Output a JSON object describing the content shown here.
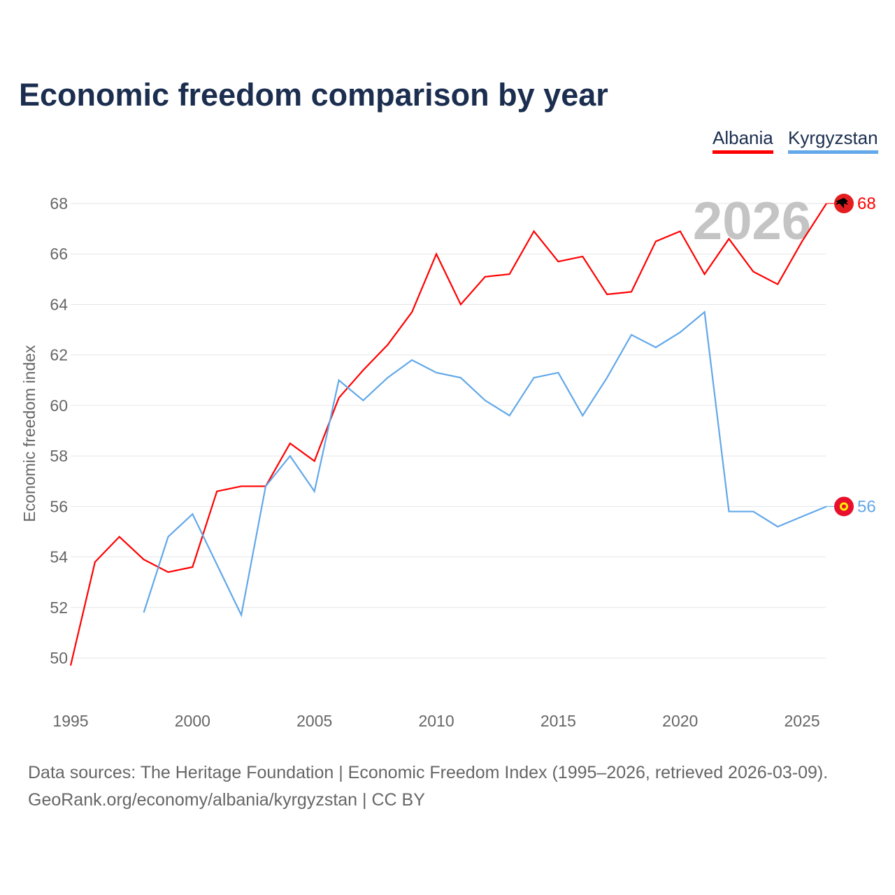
{
  "title": "Economic freedom comparison by year",
  "footer": {
    "line1": "Data sources: The Heritage Foundation | Economic Freedom Index (1995–2026, retrieved 2026-03-09).",
    "line2": "GeoRank.org/economy/albania/kyrgyzstan | CC BY"
  },
  "chart_data": {
    "type": "line",
    "title": "Economic freedom comparison by year",
    "xlabel": "",
    "ylabel": "Economic freedom index",
    "xlim": [
      1995,
      2026
    ],
    "ylim": [
      48,
      69
    ],
    "x_ticks": [
      1995,
      2000,
      2005,
      2010,
      2015,
      2020,
      2025
    ],
    "y_ticks": [
      50,
      52,
      54,
      56,
      58,
      60,
      62,
      64,
      66,
      68
    ],
    "grid": true,
    "legend_position": "top-right",
    "year_watermark": "2026",
    "series": [
      {
        "name": "Albania",
        "color": "#ff0000",
        "end_label": "68",
        "flag_icon": "albania-flag-icon",
        "x": [
          1995,
          1996,
          1997,
          1998,
          1999,
          2000,
          2001,
          2002,
          2003,
          2004,
          2005,
          2006,
          2007,
          2008,
          2009,
          2010,
          2011,
          2012,
          2013,
          2014,
          2015,
          2016,
          2017,
          2018,
          2019,
          2020,
          2021,
          2022,
          2023,
          2024,
          2025,
          2026
        ],
        "values": [
          49.7,
          53.8,
          54.8,
          53.9,
          53.4,
          53.6,
          56.6,
          56.8,
          56.8,
          58.5,
          57.8,
          60.3,
          61.4,
          62.4,
          63.7,
          66.0,
          64.0,
          65.1,
          65.2,
          66.9,
          65.7,
          65.9,
          64.4,
          64.5,
          66.5,
          66.9,
          65.2,
          66.6,
          65.3,
          64.8,
          66.5,
          68.0
        ]
      },
      {
        "name": "Kyrgyzstan",
        "color": "#62a8ea",
        "end_label": "56",
        "flag_icon": "kyrgyzstan-flag-icon",
        "x": [
          1998,
          1999,
          2000,
          2001,
          2002,
          2003,
          2004,
          2005,
          2006,
          2007,
          2008,
          2009,
          2010,
          2011,
          2012,
          2013,
          2014,
          2015,
          2016,
          2017,
          2018,
          2019,
          2020,
          2021,
          2022,
          2023,
          2024,
          2025,
          2026
        ],
        "values": [
          51.8,
          54.8,
          55.7,
          53.7,
          51.7,
          56.8,
          58.0,
          56.6,
          61.0,
          60.2,
          61.1,
          61.8,
          61.3,
          61.1,
          60.2,
          59.6,
          61.1,
          61.3,
          59.6,
          61.1,
          62.8,
          62.3,
          62.9,
          63.7,
          55.8,
          55.8,
          55.2,
          55.6,
          56.0
        ]
      }
    ]
  }
}
